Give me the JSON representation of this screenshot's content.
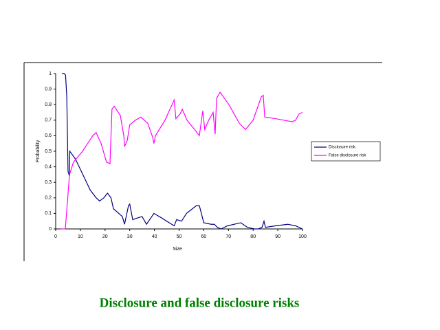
{
  "chart_data": {
    "type": "line",
    "title": "Disclosure and false disclosure risks",
    "xlabel": "Size",
    "ylabel": "Probability",
    "xlim": [
      0,
      100
    ],
    "ylim": [
      0,
      1
    ],
    "xticks": [
      0,
      10,
      20,
      30,
      40,
      50,
      60,
      70,
      80,
      90,
      100
    ],
    "yticks": [
      0,
      0.1,
      0.2,
      0.3,
      0.4,
      0.5,
      0.6,
      0.7,
      0.8,
      0.9,
      1
    ],
    "legend": "right",
    "series": [
      {
        "name": "Disclosure risk",
        "color": "#000080",
        "x": [
          2.5,
          3.5,
          4,
          4.5,
          5,
          5.6,
          5.7,
          8,
          11,
          14,
          16.4,
          17.8,
          19.5,
          21,
          22.4,
          23.4,
          27,
          27.9,
          29.5,
          30,
          31.2,
          33,
          35,
          36.8,
          39.8,
          43,
          47,
          48,
          49,
          51,
          53,
          57,
          58.2,
          60,
          63,
          64.3,
          65.5,
          67,
          69.6,
          75,
          77.7,
          80.5,
          82,
          83.6,
          84.4,
          85,
          89,
          94,
          97.2,
          100
        ],
        "values": [
          1.0,
          1.0,
          0.99,
          0.85,
          0.37,
          0.34,
          0.5,
          0.45,
          0.35,
          0.25,
          0.2,
          0.18,
          0.2,
          0.23,
          0.2,
          0.13,
          0.08,
          0.03,
          0.15,
          0.16,
          0.06,
          0.07,
          0.08,
          0.03,
          0.1,
          0.07,
          0.03,
          0.02,
          0.06,
          0.05,
          0.1,
          0.15,
          0.15,
          0.04,
          0.03,
          0.03,
          0.01,
          0.0,
          0.02,
          0.04,
          0.01,
          0.0,
          0.0,
          0.01,
          0.05,
          0.01,
          0.02,
          0.03,
          0.02,
          0.0
        ]
      },
      {
        "name": "False disclosure risk",
        "color": "#ff00ff",
        "x": [
          2,
          3.9,
          5.6,
          7.2,
          10.9,
          15,
          16.4,
          18.4,
          20.6,
          22,
          22.8,
          23.7,
          26.2,
          27.6,
          27.9,
          29,
          30,
          32.3,
          34.5,
          37.3,
          39.3,
          39.8,
          40.4,
          44.3,
          48,
          48.7,
          50.4,
          51.3,
          53.2,
          56.8,
          58.2,
          59.6,
          60.4,
          62,
          63.8,
          64.6,
          65.2,
          66.6,
          70.2,
          74.4,
          76.9,
          80,
          83.3,
          84.1,
          84.7,
          89,
          95.8,
          97.2,
          98.6,
          100
        ],
        "values": [
          0.0,
          0.0,
          0.35,
          0.43,
          0.5,
          0.6,
          0.62,
          0.55,
          0.43,
          0.42,
          0.77,
          0.79,
          0.73,
          0.6,
          0.53,
          0.57,
          0.67,
          0.7,
          0.72,
          0.68,
          0.59,
          0.55,
          0.6,
          0.7,
          0.83,
          0.71,
          0.74,
          0.77,
          0.7,
          0.63,
          0.6,
          0.76,
          0.64,
          0.7,
          0.75,
          0.61,
          0.84,
          0.88,
          0.8,
          0.68,
          0.64,
          0.7,
          0.85,
          0.86,
          0.72,
          0.71,
          0.69,
          0.7,
          0.74,
          0.75
        ]
      }
    ]
  }
}
